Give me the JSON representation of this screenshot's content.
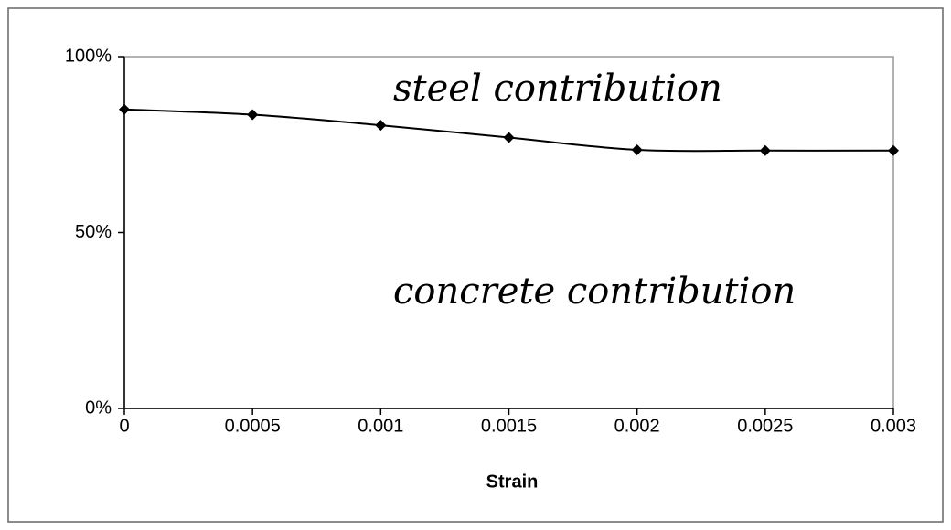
{
  "chart_data": {
    "type": "line",
    "x": [
      0,
      0.0005,
      0.001,
      0.0015,
      0.002,
      0.0025,
      0.003
    ],
    "values": [
      85,
      83.5,
      80.5,
      77,
      73.5,
      73.3,
      73.3
    ],
    "color": "#000000",
    "xlabel": "Strain",
    "xlim": [
      0,
      0.003
    ],
    "xticks": [
      0,
      0.0005,
      0.001,
      0.0015,
      0.002,
      0.0025,
      0.003
    ],
    "ylim": [
      0,
      100
    ],
    "yticks": [
      {
        "value": 0,
        "label": "0%"
      },
      {
        "value": 50,
        "label": "50%"
      },
      {
        "value": 100,
        "label": "100%"
      }
    ],
    "grid": false,
    "annotations": [
      "steel contribution",
      "concrete contribution"
    ]
  }
}
